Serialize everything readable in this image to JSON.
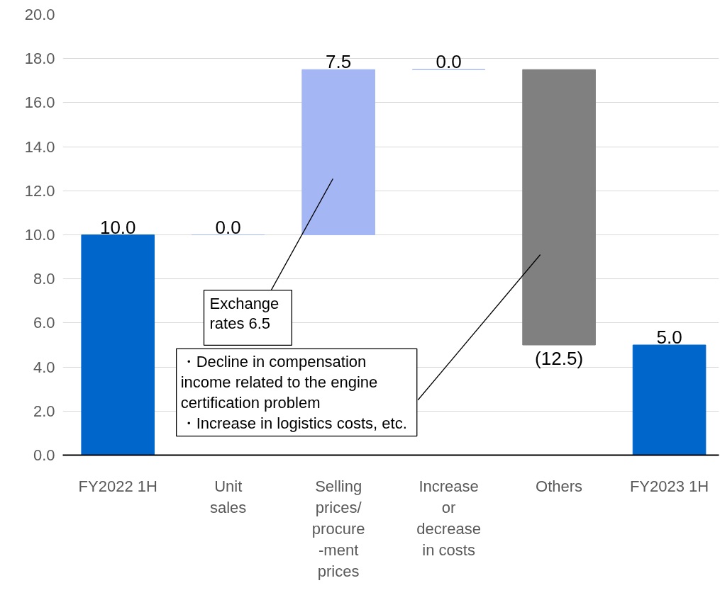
{
  "chart_data": {
    "type": "bar",
    "categories": [
      "FY2022 1H",
      "Unit\nsales",
      "Selling\nprices/\nprocure\n-ment\nprices",
      "Increase\nor\ndecrease\nin costs",
      "Others",
      "FY2023 1H"
    ],
    "base": [
      0,
      10,
      10,
      17.5,
      17.5,
      0
    ],
    "values": [
      10,
      0,
      7.5,
      0,
      -12.5,
      5
    ],
    "colors": [
      "#0066cc",
      "#a4b6f4",
      "#a4b6f4",
      "#a4b6f4",
      "#808080",
      "#0066cc"
    ],
    "value_labels": [
      "10.0",
      "0.0",
      "7.5",
      "0.0",
      "(12.5)",
      "5.0"
    ],
    "ylim": [
      0,
      20
    ],
    "yticks": [
      {
        "value": 0,
        "label": "0.0"
      },
      {
        "value": 2,
        "label": "2.0"
      },
      {
        "value": 4,
        "label": "4.0"
      },
      {
        "value": 6,
        "label": "6.0"
      },
      {
        "value": 8,
        "label": "8.0"
      },
      {
        "value": 10,
        "label": "10.0"
      },
      {
        "value": 12,
        "label": "12.0"
      },
      {
        "value": 14,
        "label": "14.0"
      },
      {
        "value": 16,
        "label": "16.0"
      },
      {
        "value": 18,
        "label": "18.0"
      },
      {
        "value": 20,
        "label": "20.0"
      }
    ],
    "grid": "y",
    "annotations": [
      "Exchange\nrates 6.5",
      "・Decline in compensation\nincome related to the engine\ncertification problem\n・Increase in logistics costs, etc."
    ]
  }
}
